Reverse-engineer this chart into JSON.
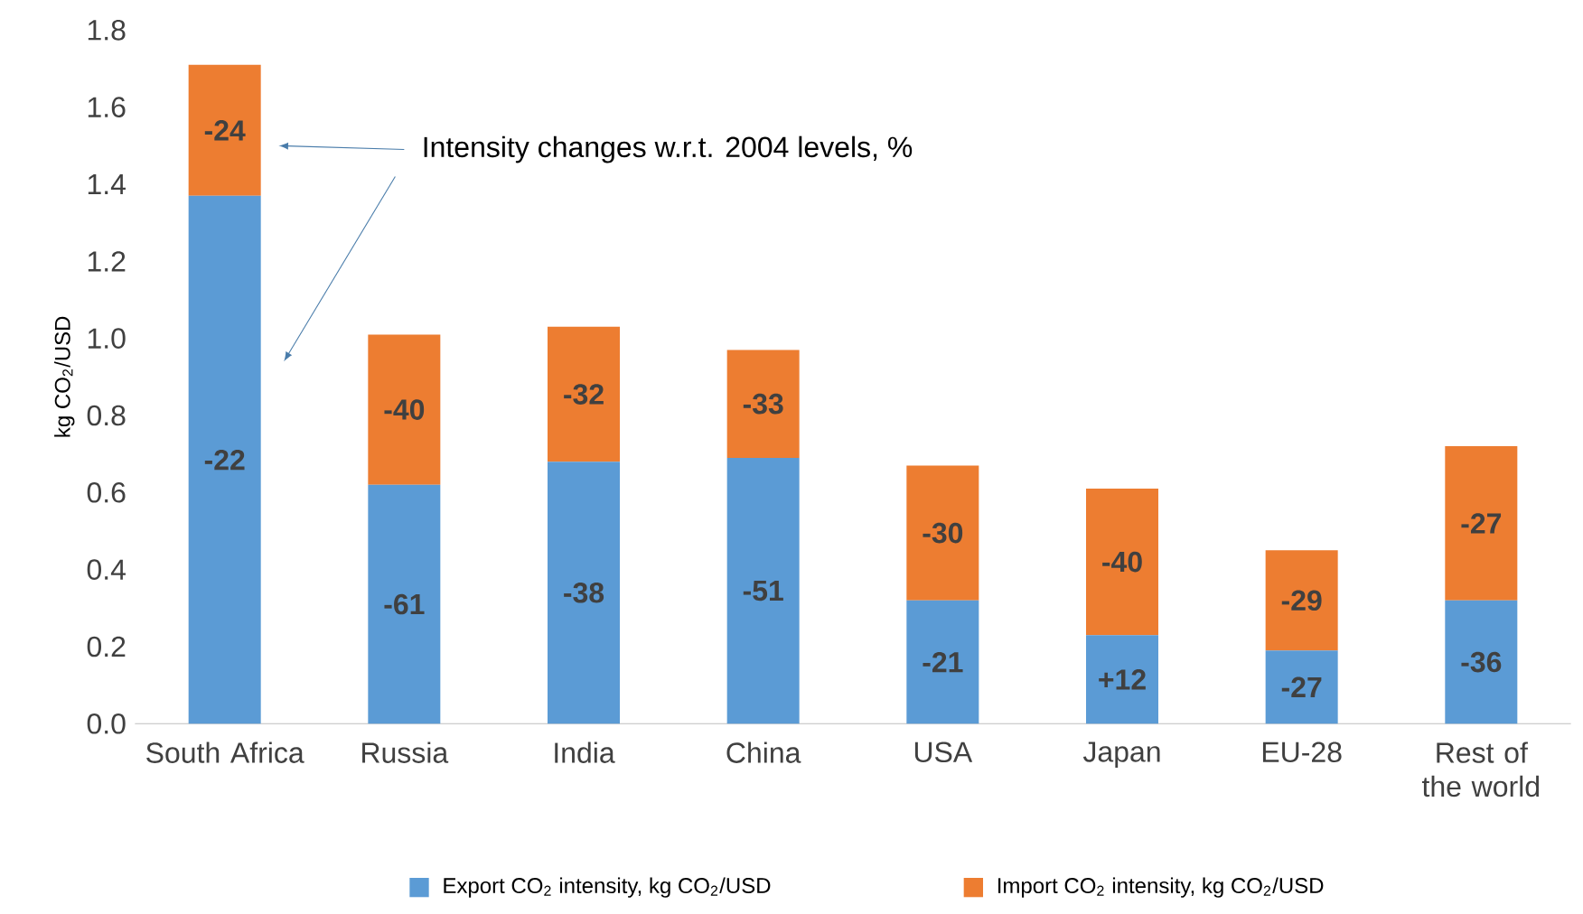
{
  "chart_data": {
    "type": "bar",
    "stacked": true,
    "ylabel": "kg CO$_{2}$/USD",
    "categories": [
      "South Africa",
      "Russia",
      "India",
      "China",
      "USA",
      "Japan",
      "EU-28",
      "Rest of the world"
    ],
    "series": [
      {
        "name": "Export CO$_{2}$ intensity, kg CO$_{2}$/USD",
        "color": "#5b9bd5",
        "values": [
          1.37,
          0.62,
          0.68,
          0.69,
          0.32,
          0.23,
          0.19,
          0.32
        ]
      },
      {
        "name": "Import CO$_{2}$ intensity, kg CO$_{2}$/USD",
        "color": "#ed7d31",
        "values": [
          0.34,
          0.39,
          0.35,
          0.28,
          0.35,
          0.38,
          0.26,
          0.4
        ]
      }
    ],
    "ylim": [
      0,
      1.8
    ],
    "yticks": [
      {
        "value": 0,
        "label": "0.0"
      },
      {
        "value": 0.2,
        "label": "0.2"
      },
      {
        "value": 0.4,
        "label": "0.4"
      },
      {
        "value": 0.6,
        "label": "0.6"
      },
      {
        "value": 0.8,
        "label": "0.8"
      },
      {
        "value": 1.0,
        "label": "1.0"
      },
      {
        "value": 1.2,
        "label": "1.2"
      },
      {
        "value": 1.4,
        "label": "1.4"
      },
      {
        "value": 1.6,
        "label": "1.6"
      },
      {
        "value": 1.8,
        "label": "1.8"
      }
    ],
    "legend": "bottom",
    "annotations": [
      "Intensity changes w.r.t. 2004 levels, %",
      "-22",
      "-61",
      "-38",
      "-51",
      "-21",
      "+12",
      "-27",
      "-36",
      "-24",
      "-40",
      "-32",
      "-33",
      "-30",
      "-40",
      "-29",
      "-27"
    ]
  }
}
